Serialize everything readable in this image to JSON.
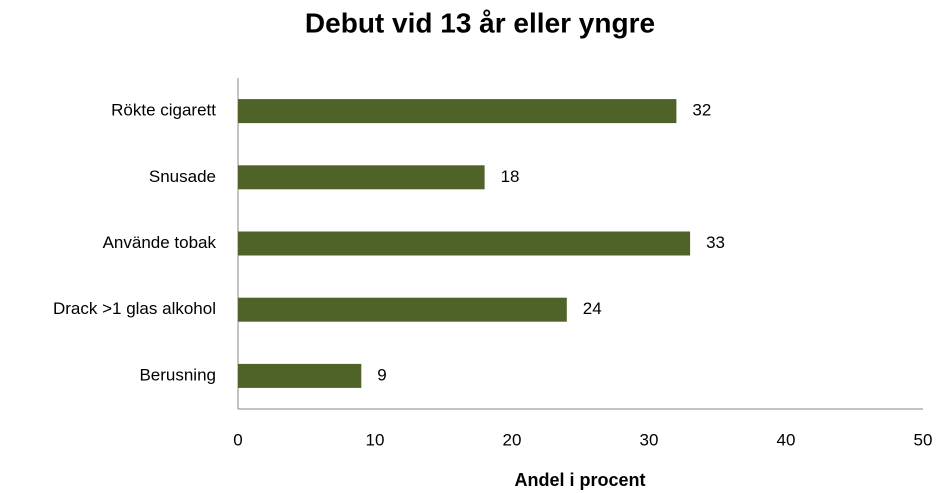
{
  "chart_data": {
    "type": "bar",
    "orientation": "horizontal",
    "title": "Debut vid 13 år eller yngre",
    "x_label": "Andel i procent",
    "categories": [
      "Rökte cigarett",
      "Snusade",
      "Använde tobak",
      "Drack >1 glas alkohol",
      "Berusning"
    ],
    "values": [
      32,
      18,
      33,
      24,
      9
    ],
    "color": "#4f6228",
    "xlim": [
      0,
      50
    ],
    "xticks": [
      0,
      10,
      20,
      30,
      40,
      50
    ],
    "grid": false
  }
}
